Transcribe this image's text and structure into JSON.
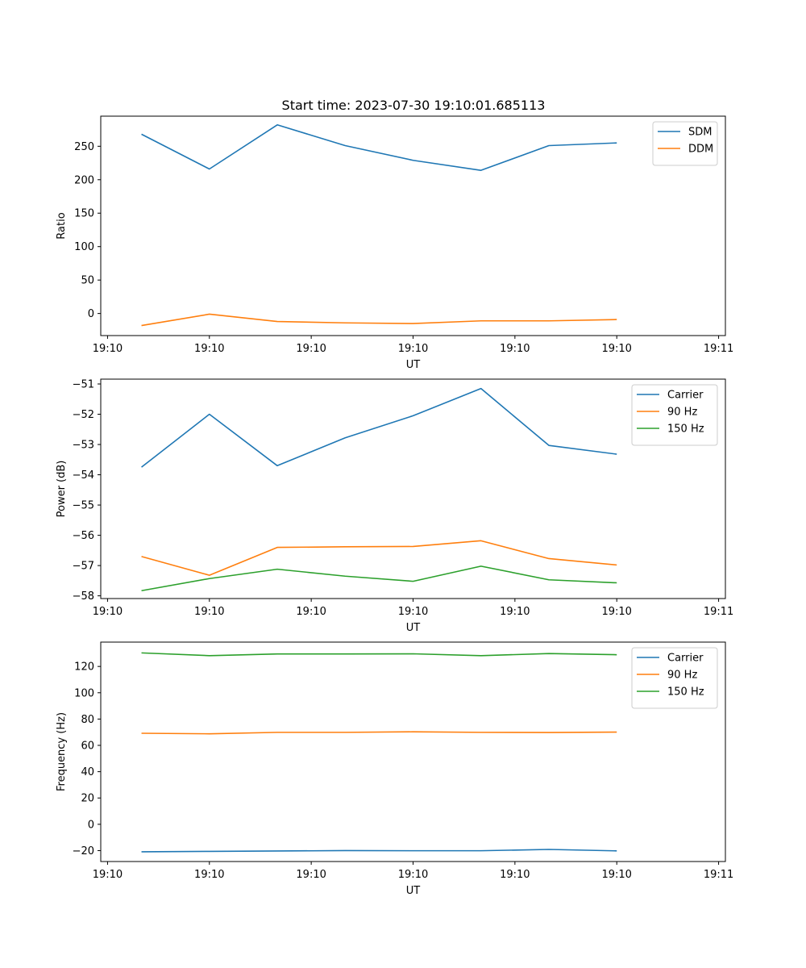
{
  "chart_data": [
    {
      "type": "line",
      "title": "Start time: 2023-07-30 19:10:01.685113",
      "xlabel": "UT",
      "ylabel": "Ratio",
      "xlim": [
        -0.6,
        8.6
      ],
      "x": [
        0,
        1,
        2,
        3,
        4,
        5,
        6,
        7
      ],
      "x_ticks": [
        -0.5,
        1,
        2.5,
        4,
        5.5,
        7,
        8.5
      ],
      "x_tick_labels": [
        "19:10",
        "19:10",
        "19:10",
        "19:10",
        "19:10",
        "19:10",
        "19:11"
      ],
      "ylim": [
        -33,
        295
      ],
      "y_ticks": [
        0,
        50,
        100,
        150,
        200,
        250
      ],
      "y_tick_labels": [
        "0",
        "50",
        "100",
        "150",
        "200",
        "250"
      ],
      "legend_position": "top-right",
      "series": [
        {
          "name": "SDM",
          "color": "#1f77b4",
          "values": [
            268,
            216,
            282,
            251,
            229,
            214,
            251,
            255
          ]
        },
        {
          "name": "DDM",
          "color": "#ff7f0e",
          "values": [
            -18,
            -1,
            -12,
            -14,
            -15,
            -11,
            -11,
            -9
          ]
        }
      ]
    },
    {
      "type": "line",
      "title": "",
      "xlabel": "UT",
      "ylabel": "Power (dB)",
      "xlim": [
        -0.6,
        8.6
      ],
      "x": [
        0,
        1,
        2,
        3,
        4,
        5,
        6,
        7
      ],
      "x_ticks": [
        -0.5,
        1,
        2.5,
        4,
        5.5,
        7,
        8.5
      ],
      "x_tick_labels": [
        "19:10",
        "19:10",
        "19:10",
        "19:10",
        "19:10",
        "19:10",
        "19:11"
      ],
      "ylim": [
        -58.09,
        -50.84
      ],
      "y_ticks": [
        -58,
        -57,
        -56,
        -55,
        -54,
        -53,
        -52,
        -51
      ],
      "y_tick_labels": [
        "−58",
        "−57",
        "−56",
        "−55",
        "−54",
        "−53",
        "−52",
        "−51"
      ],
      "legend_position": "top-right",
      "series": [
        {
          "name": "Carrier",
          "color": "#1f77b4",
          "values": [
            -53.75,
            -52.0,
            -53.7,
            -52.78,
            -52.05,
            -51.15,
            -53.03,
            -53.32
          ]
        },
        {
          "name": "90 Hz",
          "color": "#ff7f0e",
          "values": [
            -56.7,
            -57.32,
            -56.4,
            -56.38,
            -56.37,
            -56.18,
            -56.77,
            -56.98
          ]
        },
        {
          "name": "150 Hz",
          "color": "#2ca02c",
          "values": [
            -57.83,
            -57.43,
            -57.12,
            -57.35,
            -57.52,
            -57.02,
            -57.47,
            -57.57
          ]
        }
      ]
    },
    {
      "type": "line",
      "title": "",
      "xlabel": "UT",
      "ylabel": "Frequency (Hz)",
      "xlim": [
        -0.6,
        8.6
      ],
      "x": [
        0,
        1,
        2,
        3,
        4,
        5,
        6,
        7
      ],
      "x_ticks": [
        -0.5,
        1,
        2.5,
        4,
        5.5,
        7,
        8.5
      ],
      "x_tick_labels": [
        "19:10",
        "19:10",
        "19:10",
        "19:10",
        "19:10",
        "19:10",
        "19:11"
      ],
      "ylim": [
        -28.3,
        138.5
      ],
      "y_ticks": [
        -20,
        0,
        20,
        40,
        60,
        80,
        100,
        120
      ],
      "y_tick_labels": [
        "−20",
        "0",
        "20",
        "40",
        "60",
        "80",
        "100",
        "120"
      ],
      "legend_position": "top-right",
      "series": [
        {
          "name": "Carrier",
          "color": "#1f77b4",
          "values": [
            -20.9,
            -20.6,
            -20.3,
            -20.0,
            -20.1,
            -20.1,
            -19.1,
            -20.2
          ]
        },
        {
          "name": "90 Hz",
          "color": "#ff7f0e",
          "values": [
            69.2,
            68.8,
            69.9,
            69.9,
            70.3,
            69.9,
            69.8,
            70.1
          ]
        },
        {
          "name": "150 Hz",
          "color": "#2ca02c",
          "values": [
            130.3,
            128.2,
            129.5,
            129.5,
            129.6,
            128.2,
            129.8,
            128.9
          ]
        }
      ]
    }
  ]
}
